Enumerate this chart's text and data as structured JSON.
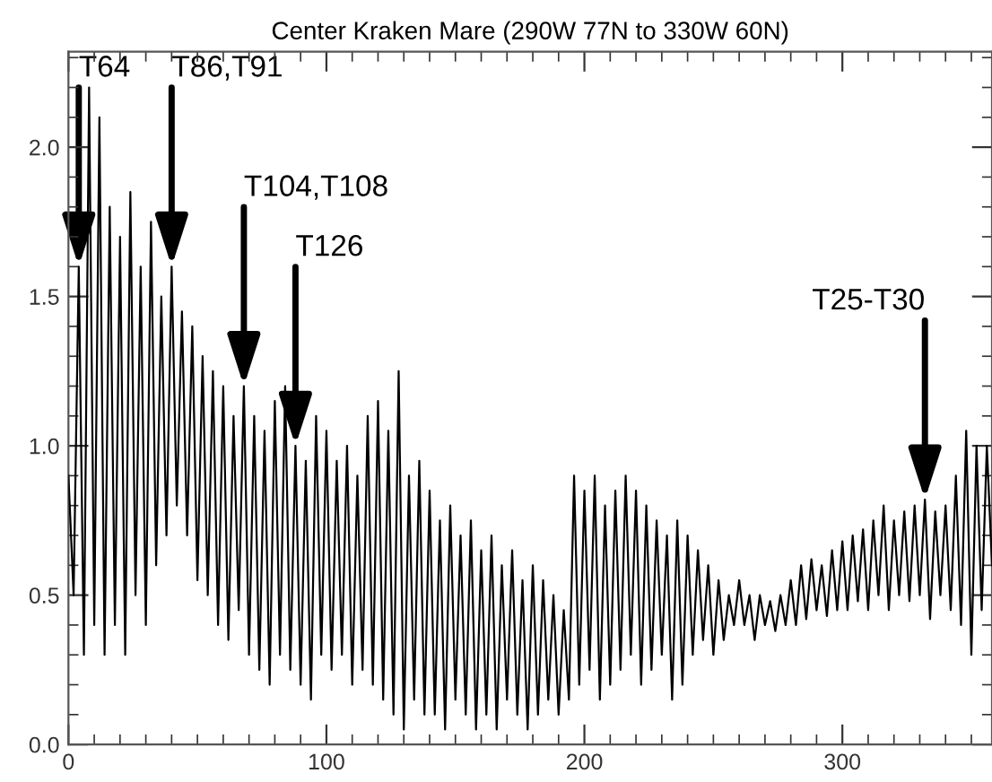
{
  "chart_data": {
    "type": "line",
    "title": "Center Kraken Mare (290W 77N to 330W 60N)",
    "x": [
      0,
      2,
      4,
      6,
      8,
      10,
      12,
      14,
      16,
      18,
      20,
      22,
      24,
      26,
      28,
      30,
      32,
      34,
      36,
      38,
      40,
      42,
      44,
      46,
      48,
      50,
      52,
      54,
      56,
      58,
      60,
      62,
      64,
      66,
      68,
      70,
      72,
      74,
      76,
      78,
      80,
      82,
      84,
      86,
      88,
      90,
      92,
      94,
      96,
      98,
      100,
      102,
      104,
      106,
      108,
      110,
      112,
      114,
      116,
      118,
      120,
      122,
      124,
      126,
      128,
      130,
      132,
      134,
      136,
      138,
      140,
      142,
      144,
      146,
      148,
      150,
      152,
      154,
      156,
      158,
      160,
      162,
      164,
      166,
      168,
      170,
      172,
      174,
      176,
      178,
      180,
      182,
      184,
      186,
      188,
      190,
      192,
      194,
      196,
      198,
      200,
      202,
      204,
      206,
      208,
      210,
      212,
      214,
      216,
      218,
      220,
      222,
      224,
      226,
      228,
      230,
      232,
      234,
      236,
      238,
      240,
      242,
      244,
      246,
      248,
      250,
      252,
      254,
      256,
      258,
      260,
      262,
      264,
      266,
      268,
      270,
      272,
      274,
      276,
      278,
      280,
      282,
      284,
      286,
      288,
      290,
      292,
      294,
      296,
      298,
      300,
      302,
      304,
      306,
      308,
      310,
      312,
      314,
      316,
      318,
      320,
      322,
      324,
      326,
      328,
      330,
      332,
      334,
      336,
      338,
      340,
      342,
      344,
      346,
      348,
      350,
      352,
      354,
      356,
      358
    ],
    "series": [
      {
        "color": "#000000",
        "values": [
          0.9,
          0.5,
          1.6,
          0.3,
          2.2,
          0.4,
          2.1,
          0.3,
          1.8,
          0.4,
          1.7,
          0.3,
          1.85,
          0.5,
          1.6,
          0.4,
          1.75,
          0.6,
          1.5,
          0.7,
          1.6,
          0.8,
          1.45,
          0.7,
          1.4,
          0.55,
          1.3,
          0.5,
          1.25,
          0.4,
          1.2,
          0.35,
          1.1,
          0.45,
          1.2,
          0.3,
          1.1,
          0.25,
          1.05,
          0.2,
          1.15,
          0.3,
          1.2,
          0.25,
          1.0,
          0.2,
          0.95,
          0.15,
          1.1,
          0.3,
          1.05,
          0.25,
          0.95,
          0.3,
          1.0,
          0.2,
          0.9,
          0.25,
          1.1,
          0.2,
          1.15,
          0.15,
          1.05,
          0.1,
          1.25,
          0.05,
          0.9,
          0.15,
          0.95,
          0.1,
          0.85,
          0.1,
          0.75,
          0.05,
          0.8,
          0.15,
          0.7,
          0.1,
          0.75,
          0.05,
          0.65,
          0.1,
          0.7,
          0.05,
          0.6,
          0.15,
          0.65,
          0.1,
          0.55,
          0.05,
          0.6,
          0.1,
          0.55,
          0.15,
          0.5,
          0.1,
          0.45,
          0.15,
          0.9,
          0.2,
          0.85,
          0.25,
          0.9,
          0.15,
          0.8,
          0.2,
          0.85,
          0.25,
          0.9,
          0.3,
          0.85,
          0.2,
          0.8,
          0.25,
          0.75,
          0.3,
          0.7,
          0.15,
          0.75,
          0.2,
          0.7,
          0.3,
          0.65,
          0.35,
          0.6,
          0.3,
          0.55,
          0.35,
          0.5,
          0.4,
          0.55,
          0.4,
          0.5,
          0.35,
          0.5,
          0.4,
          0.48,
          0.38,
          0.5,
          0.4,
          0.55,
          0.4,
          0.6,
          0.42,
          0.62,
          0.45,
          0.6,
          0.43,
          0.65,
          0.45,
          0.68,
          0.45,
          0.7,
          0.48,
          0.72,
          0.45,
          0.75,
          0.5,
          0.8,
          0.45,
          0.75,
          0.5,
          0.78,
          0.48,
          0.8,
          0.5,
          0.82,
          0.42,
          0.78,
          0.5,
          0.8,
          0.45,
          0.9,
          0.4,
          1.05,
          0.3,
          1.0,
          0.45,
          1.0,
          0.6
        ]
      }
    ],
    "xlim": [
      0,
      358
    ],
    "xticks": [
      0,
      100,
      200,
      300
    ],
    "ylim": [
      0,
      2.32
    ],
    "yticks": [
      {
        "value": 0,
        "label": "0.0"
      },
      0.5,
      {
        "value": 1,
        "label": "1.0"
      },
      1.5,
      {
        "value": 2,
        "label": "2.0"
      }
    ],
    "grid": false,
    "legend": false,
    "annotations": [
      {
        "text": "T64",
        "x": 4,
        "y": 1.6
      },
      {
        "text": "T86,T91",
        "x": 40,
        "y": 1.6
      },
      {
        "text": "T104,T108",
        "x": 68,
        "y": 1.2
      },
      {
        "text": "T126",
        "x": 88,
        "y": 1.0
      },
      {
        "text": "T25-T30",
        "x": 332,
        "y": 0.82
      }
    ]
  }
}
